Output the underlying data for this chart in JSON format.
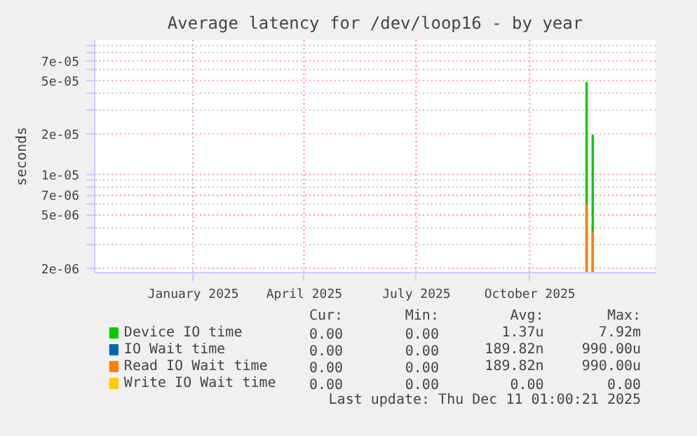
{
  "chart_data": {
    "type": "bar",
    "title": "Average latency for /dev/loop16 - by year",
    "ylabel": "seconds",
    "x": [
      "2025-11-16",
      "2025-11-21"
    ],
    "series": [
      {
        "name": "Device IO time",
        "color": "#00cc00",
        "values": [
          4.8e-05,
          1.95e-05
        ]
      },
      {
        "name": "IO Wait time",
        "color": "#0066b3",
        "values": [
          null,
          null
        ]
      },
      {
        "name": "Read IO Wait time",
        "color": "#ff8000",
        "values": [
          5.9e-06,
          3.7e-06
        ]
      },
      {
        "name": "Write IO Wait time",
        "color": "#ffcc00",
        "values": [
          null,
          null
        ]
      }
    ],
    "log": true,
    "ylim": [
      1.85e-06,
      0.0001
    ],
    "yticks": [
      {
        "value": 2e-06,
        "label": "2e-06"
      },
      {
        "value": 3e-06,
        "label": null
      },
      {
        "value": 4e-06,
        "label": null
      },
      {
        "value": 5e-06,
        "label": "5e-06"
      },
      {
        "value": 6e-06,
        "label": null
      },
      {
        "value": 7e-06,
        "label": "7e-06"
      },
      {
        "value": 8e-06,
        "label": null
      },
      {
        "value": 9e-06,
        "label": null
      },
      {
        "value": 1e-05,
        "label": "1e-05"
      },
      {
        "value": 2e-05,
        "label": "2e-05"
      },
      {
        "value": 3e-05,
        "label": null
      },
      {
        "value": 4e-05,
        "label": null
      },
      {
        "value": 5e-05,
        "label": "5e-05"
      },
      {
        "value": 6e-05,
        "label": null
      },
      {
        "value": 7e-05,
        "label": "7e-05"
      },
      {
        "value": 8e-05,
        "label": null
      },
      {
        "value": 9e-05,
        "label": null
      }
    ],
    "xlim": [
      "2024-10-13",
      "2026-01-11"
    ],
    "xticks": [
      {
        "value": "2025-01-01",
        "label": "January 2025"
      },
      {
        "value": "2025-04-01",
        "label": "April 2025"
      },
      {
        "value": "2025-07-01",
        "label": "July 2025"
      },
      {
        "value": "2025-10-01",
        "label": "October 2025"
      }
    ],
    "grid": true,
    "legend": "bottom",
    "annotations": [
      "Cur:",
      "Min:",
      "Avg:",
      "Max:",
      "0.00",
      "0.00",
      "1.37u",
      "7.92m",
      "0.00",
      "0.00",
      "189.82n",
      "990.00u",
      "0.00",
      "0.00",
      "189.82n",
      "990.00u",
      "0.00",
      "0.00",
      "0.00",
      "0.00",
      "Last update: Thu Dec 11 01:00:21 2025"
    ]
  }
}
